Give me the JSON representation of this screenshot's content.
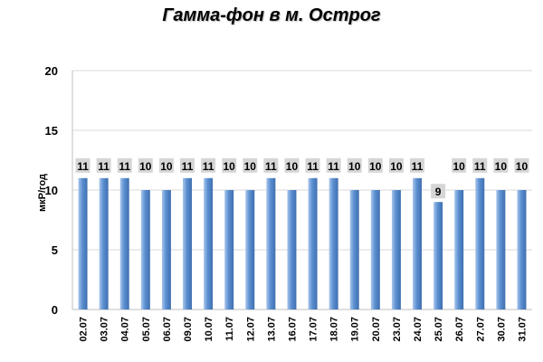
{
  "chart_data": {
    "type": "bar",
    "title": "Гамма-фон в м. Острог",
    "xlabel": "",
    "ylabel": "мкР/год",
    "ylim": [
      0,
      20
    ],
    "yticks": [
      0,
      5,
      10,
      15,
      20
    ],
    "grid": true,
    "legend": "none",
    "categories": [
      "02.07",
      "03.07",
      "04.07",
      "05.07",
      "06.07",
      "09.07",
      "10.07",
      "11.07",
      "12.07",
      "13.07",
      "16.07",
      "17.07",
      "18.07",
      "19.07",
      "20.07",
      "23.07",
      "24.07",
      "25.07",
      "26.07",
      "27.07",
      "30.07",
      "31.07"
    ],
    "values": [
      11,
      11,
      11,
      10,
      10,
      11,
      11,
      10,
      10,
      11,
      10,
      11,
      11,
      10,
      10,
      10,
      11,
      9,
      10,
      11,
      10,
      10
    ],
    "data_labels": [
      "11",
      "11",
      "11",
      "10",
      "10",
      "11",
      "11",
      "10",
      "10",
      "11",
      "10",
      "11",
      "11",
      "10",
      "10",
      "10",
      "11",
      "9",
      "10",
      "11",
      "10",
      "10"
    ],
    "colors": {
      "bar": "#5b8fd0",
      "bar_dark": "#3f6fb0",
      "bar_light": "#a9c6ec",
      "gridline": "#d9d9d9",
      "label_bg": "#d6d6d6"
    }
  }
}
